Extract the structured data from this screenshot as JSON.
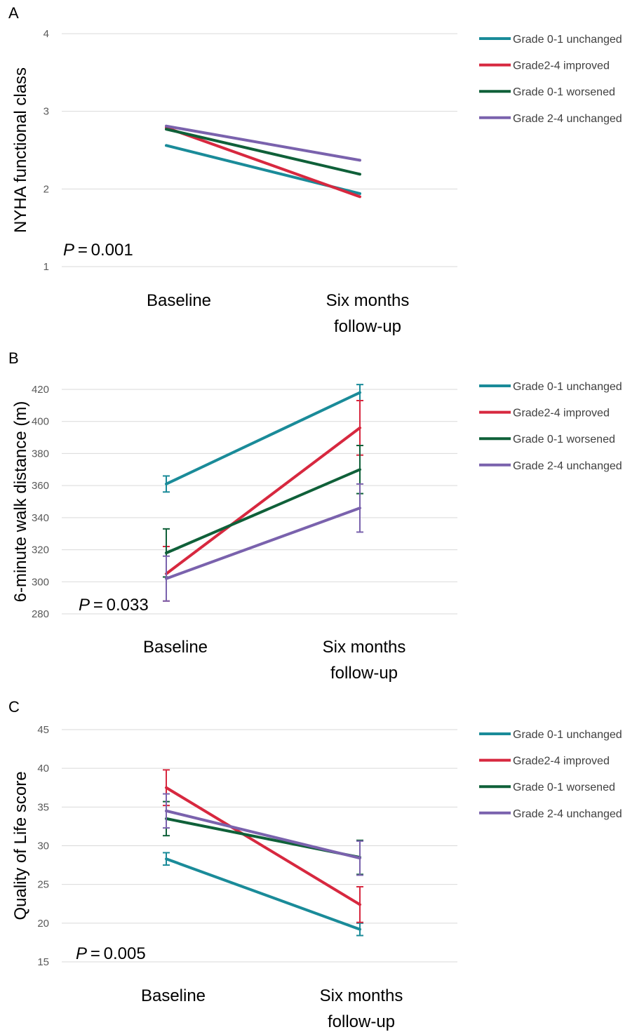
{
  "panels": [
    {
      "letter": "A",
      "ylabel": "NYHA functional class",
      "p_italic": "P",
      "p_rest": " = 0.001"
    },
    {
      "letter": "B",
      "ylabel": "6-minute walk distance (m)",
      "p_italic": "P",
      "p_rest": " = 0.033"
    },
    {
      "letter": "C",
      "ylabel": "Quality of Life score",
      "p_italic": "P",
      "p_rest": " = 0.005"
    }
  ],
  "chart_data": [
    {
      "type": "line",
      "panel": "A",
      "categories": [
        "Baseline",
        "Six months\nfollow-up"
      ],
      "ylabel": "NYHA functional class",
      "ylim": [
        1,
        4
      ],
      "yticks": [
        1,
        2,
        3,
        4
      ],
      "grid": true,
      "legend_position": "right",
      "annotation": "P = 0.001",
      "series": [
        {
          "name": "Grade 0-1 unchanged",
          "color": "#1a8b99",
          "values": [
            2.56,
            1.94
          ],
          "err": [
            0,
            0
          ]
        },
        {
          "name": "Grade2-4 improved",
          "color": "#d7283f",
          "values": [
            2.79,
            1.9
          ],
          "err": [
            0,
            0
          ]
        },
        {
          "name": "Grade 0-1 worsened",
          "color": "#0f6039",
          "values": [
            2.77,
            2.19
          ],
          "err": [
            0,
            0
          ]
        },
        {
          "name": "Grade 2-4 unchanged",
          "color": "#7a62ad",
          "values": [
            2.81,
            2.37
          ],
          "err": [
            0,
            0
          ]
        }
      ]
    },
    {
      "type": "line",
      "panel": "B",
      "categories": [
        "Baseline",
        "Six months\nfollow-up"
      ],
      "ylabel": "6-minute walk distance (m)",
      "ylim": [
        280,
        420
      ],
      "yticks": [
        280,
        300,
        320,
        340,
        360,
        380,
        400,
        420
      ],
      "grid": true,
      "legend_position": "right",
      "annotation": "P = 0.033",
      "series": [
        {
          "name": "Grade 0-1 unchanged",
          "color": "#1a8b99",
          "values": [
            361,
            418
          ],
          "err": [
            5,
            5
          ]
        },
        {
          "name": "Grade2-4 improved",
          "color": "#d7283f",
          "values": [
            305,
            396
          ],
          "err": [
            17,
            17
          ]
        },
        {
          "name": "Grade 0-1 worsened",
          "color": "#0f6039",
          "values": [
            318,
            370
          ],
          "err": [
            15,
            15
          ]
        },
        {
          "name": "Grade 2-4 unchanged",
          "color": "#7a62ad",
          "values": [
            302,
            346
          ],
          "err": [
            14,
            15
          ]
        }
      ]
    },
    {
      "type": "line",
      "panel": "C",
      "categories": [
        "Baseline",
        "Six months\nfollow-up"
      ],
      "ylabel": "Quality of Life score",
      "ylim": [
        15,
        45
      ],
      "yticks": [
        15,
        20,
        25,
        30,
        35,
        40,
        45
      ],
      "grid": true,
      "legend_position": "right",
      "annotation": "P = 0.005",
      "series": [
        {
          "name": "Grade 0-1 unchanged",
          "color": "#1a8b99",
          "values": [
            28.3,
            19.2
          ],
          "err": [
            0.8,
            0.8
          ]
        },
        {
          "name": "Grade2-4 improved",
          "color": "#d7283f",
          "values": [
            37.5,
            22.4
          ],
          "err": [
            2.3,
            2.3
          ]
        },
        {
          "name": "Grade 0-1 worsened",
          "color": "#0f6039",
          "values": [
            33.5,
            28.5
          ],
          "err": [
            2.2,
            2.2
          ]
        },
        {
          "name": "Grade 2-4 unchanged",
          "color": "#7a62ad",
          "values": [
            34.5,
            28.4
          ],
          "err": [
            2.2,
            2.2
          ]
        }
      ]
    }
  ]
}
